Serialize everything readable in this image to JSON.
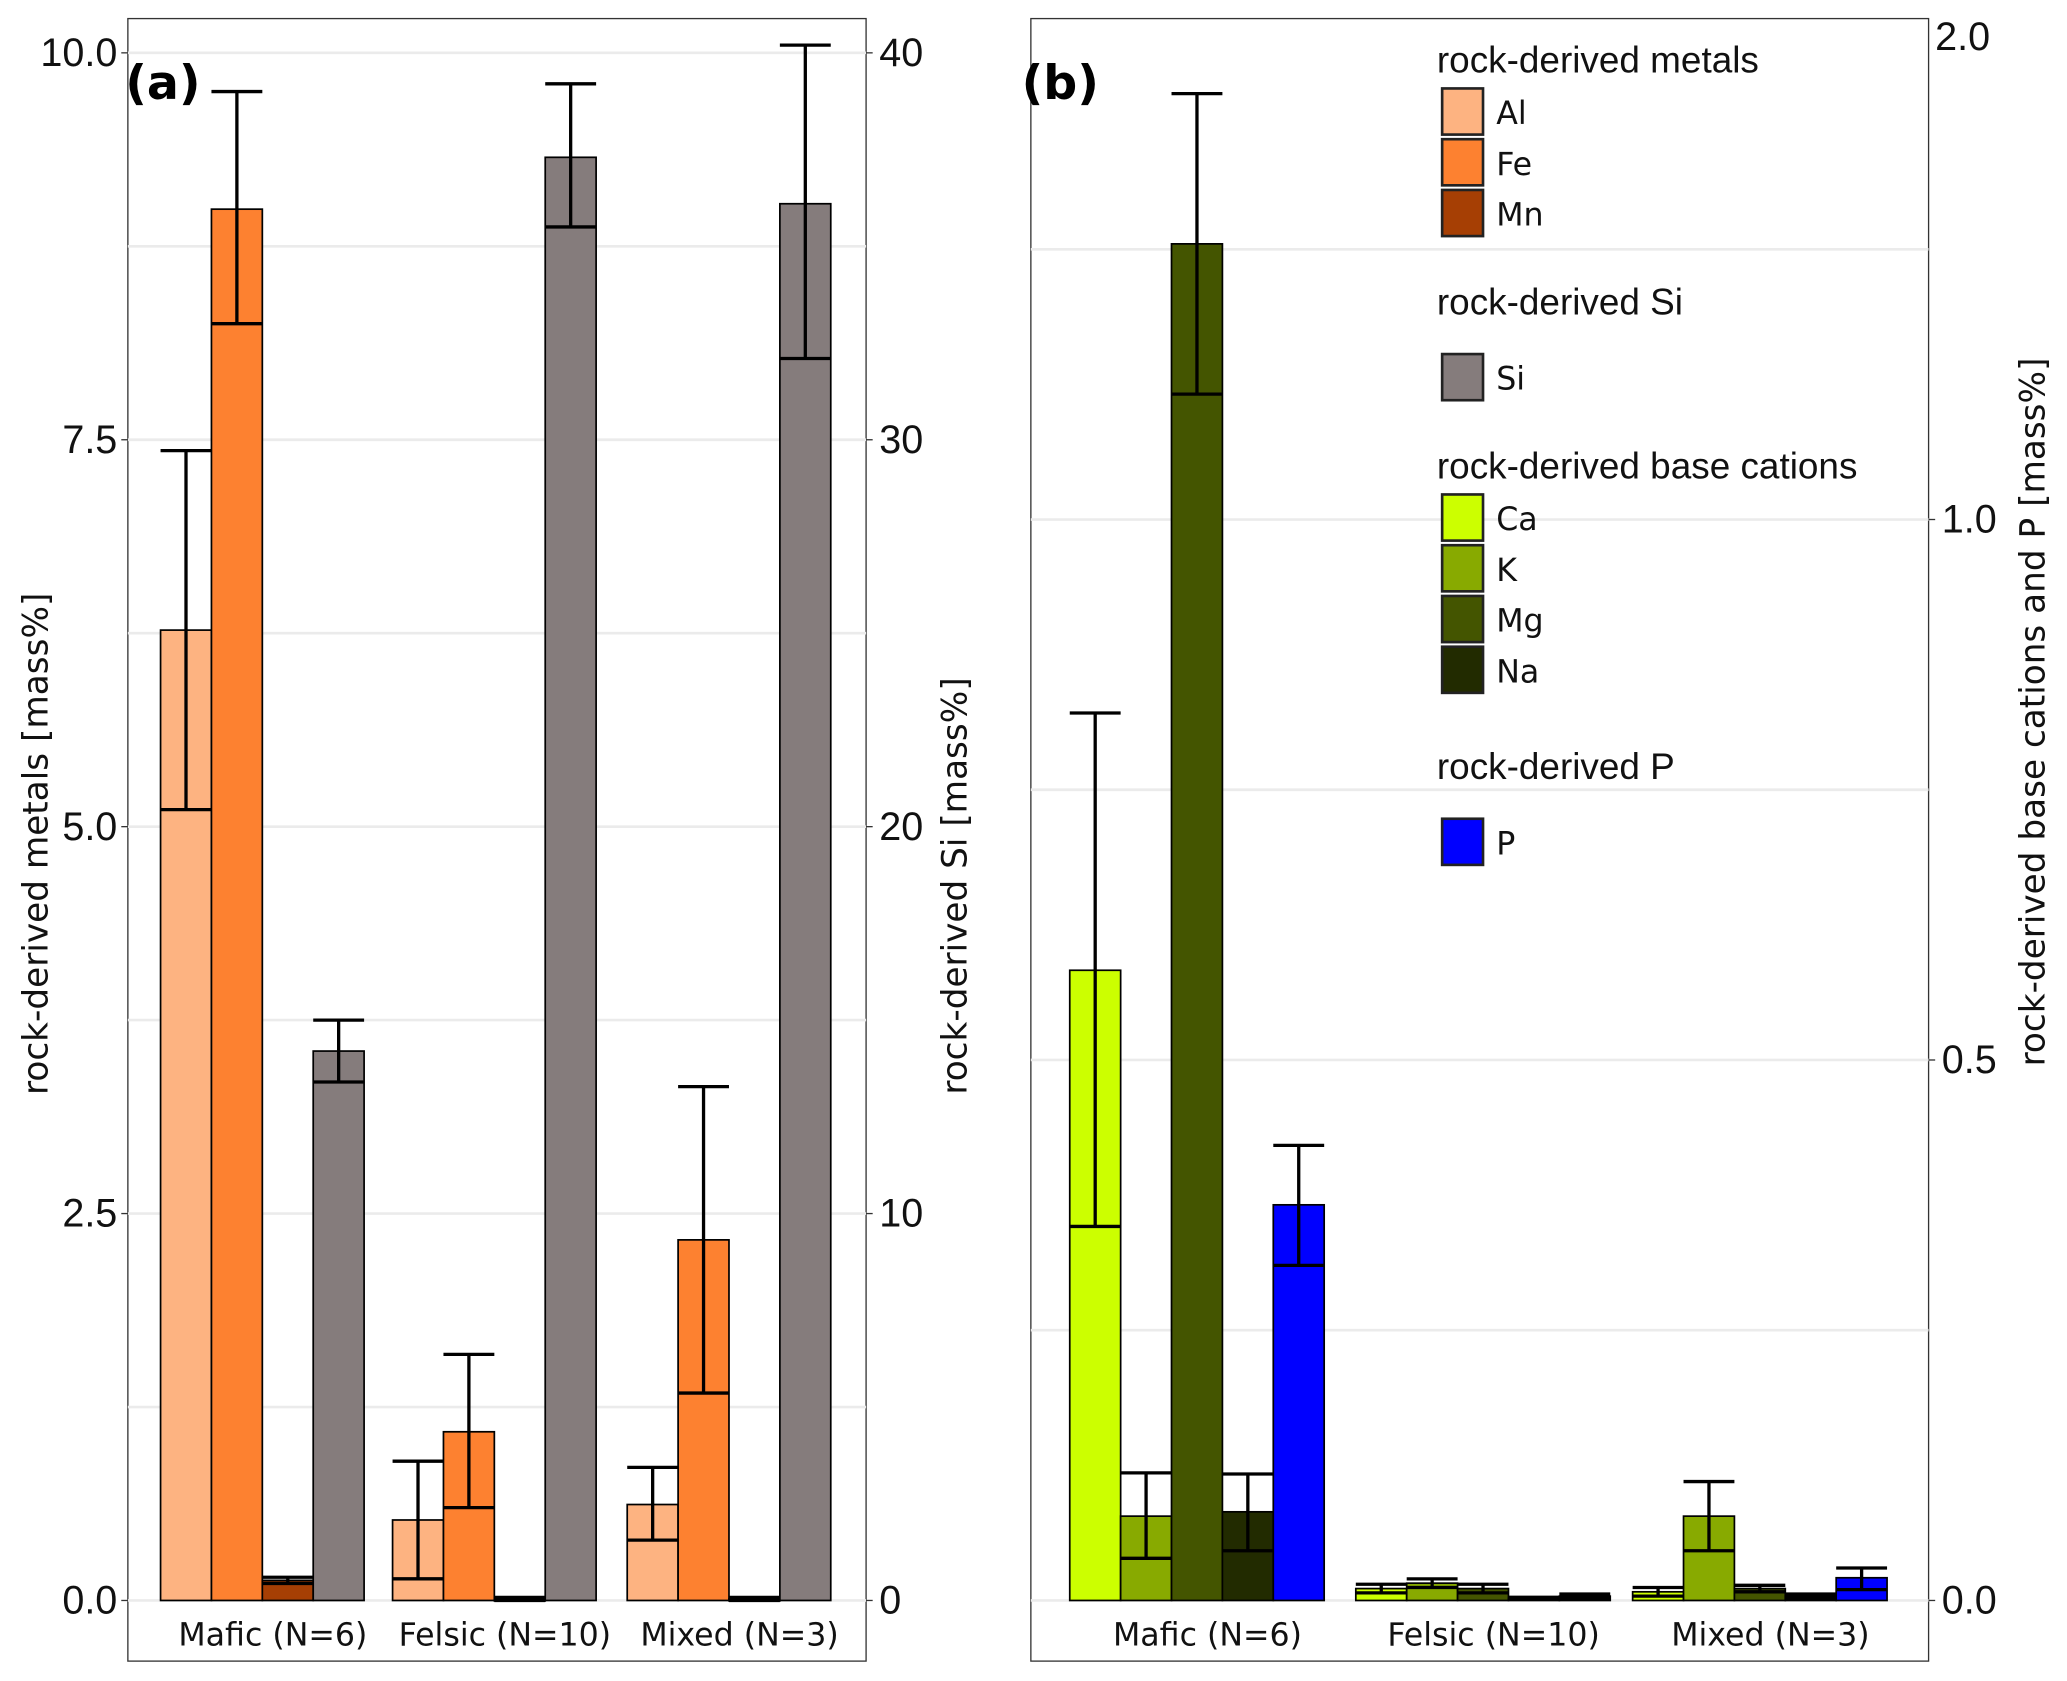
{
  "chart_data": [
    {
      "type": "bar",
      "panel_label": "(a)",
      "categories": [
        "Mafic (N=6)",
        "Felsic (N=10)",
        "Mixed (N=3)"
      ],
      "ylabel": "rock-derived metals [mass%]",
      "ylim": [
        0,
        10
      ],
      "yticks": [
        "0.0",
        "2.5",
        "5.0",
        "7.5",
        "10.0"
      ],
      "y2label": "rock-derived Si [mass%]",
      "y2lim": [
        0,
        40
      ],
      "y2ticks": [
        "0",
        "10",
        "20",
        "30",
        "40"
      ],
      "grid": true,
      "series": [
        {
          "name": "Al",
          "axis": "left",
          "color": "#FDB381",
          "values": [
            6.27,
            0.52,
            0.62
          ],
          "err_low": [
            5.11,
            0.14,
            0.39
          ],
          "err_high": [
            7.43,
            0.9,
            0.86
          ]
        },
        {
          "name": "Fe",
          "axis": "left",
          "color": "#FD8130",
          "values": [
            8.99,
            1.09,
            2.33
          ],
          "err_low": [
            8.25,
            0.6,
            1.34
          ],
          "err_high": [
            9.75,
            1.59,
            3.32
          ]
        },
        {
          "name": "Mn",
          "axis": "left",
          "color": "#A63F04",
          "values": [
            0.13,
            0.01,
            0.01
          ],
          "err_low": [
            0.11,
            0.0,
            0.0
          ],
          "err_high": [
            0.15,
            0.02,
            0.02
          ]
        },
        {
          "name": "Si",
          "axis": "right",
          "color": "#857C7C",
          "values": [
            14.2,
            37.3,
            36.1
          ],
          "err_low": [
            13.4,
            35.5,
            32.1
          ],
          "err_high": [
            15.0,
            39.2,
            40.2
          ]
        }
      ]
    },
    {
      "type": "bar",
      "panel_label": "(b)",
      "categories": [
        "Mafic (N=6)",
        "Felsic (N=10)",
        "Mixed (N=3)"
      ],
      "y2label": "rock-derived base cations and P [mass%]",
      "y2lim": [
        0,
        1.45
      ],
      "y2ticks": [
        "0.0",
        "0.5",
        "1.0"
      ],
      "y2top_label": "2.0",
      "grid": true,
      "series": [
        {
          "name": "Ca",
          "color": "#CCFF00",
          "values": [
            0.583,
            0.011,
            0.008
          ],
          "err_low": [
            0.346,
            0.007,
            0.004
          ],
          "err_high": [
            0.821,
            0.015,
            0.012
          ]
        },
        {
          "name": "K",
          "color": "#88AA00",
          "values": [
            0.078,
            0.016,
            0.078
          ],
          "err_low": [
            0.039,
            0.012,
            0.046
          ],
          "err_high": [
            0.118,
            0.02,
            0.11
          ]
        },
        {
          "name": "Mg",
          "color": "#445500",
          "values": [
            1.255,
            0.011,
            0.011
          ],
          "err_low": [
            1.116,
            0.007,
            0.008
          ],
          "err_high": [
            1.394,
            0.015,
            0.014
          ]
        },
        {
          "name": "Na",
          "color": "#222B00",
          "values": [
            0.082,
            0.002,
            0.004
          ],
          "err_low": [
            0.046,
            0.001,
            0.002
          ],
          "err_high": [
            0.117,
            0.003,
            0.006
          ]
        },
        {
          "name": "P",
          "color": "#0000FF",
          "values": [
            0.366,
            0.004,
            0.021
          ],
          "err_low": [
            0.31,
            0.002,
            0.01
          ],
          "err_high": [
            0.421,
            0.006,
            0.03
          ]
        }
      ],
      "legend": {
        "placement": "top-right",
        "groups": [
          {
            "title": "rock-derived metals",
            "items": [
              {
                "label": "Al",
                "color": "#FDB381"
              },
              {
                "label": "Fe",
                "color": "#FD8130"
              },
              {
                "label": "Mn",
                "color": "#A63F04"
              }
            ]
          },
          {
            "title": "rock-derived Si",
            "items": [
              {
                "label": "Si",
                "color": "#857C7C"
              }
            ]
          },
          {
            "title": "rock-derived base cations",
            "items": [
              {
                "label": "Ca",
                "color": "#CCFF00"
              },
              {
                "label": "K",
                "color": "#88AA00"
              },
              {
                "label": "Mg",
                "color": "#445500"
              },
              {
                "label": "Na",
                "color": "#222B00"
              }
            ]
          },
          {
            "title": "rock-derived P",
            "items": [
              {
                "label": "P",
                "color": "#0000FF"
              }
            ]
          }
        ]
      }
    }
  ]
}
